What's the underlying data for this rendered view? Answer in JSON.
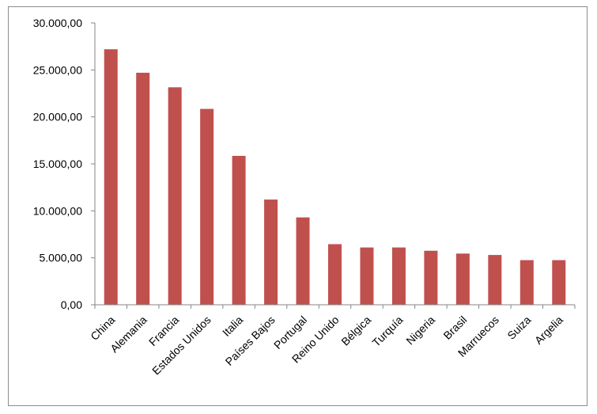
{
  "chart_data": {
    "type": "bar",
    "categories": [
      "China",
      "Alemania",
      "Francia",
      "Estados Unidos",
      "Italia",
      "Países Bajos",
      "Portugal",
      "Reino Unido",
      "Bélgica",
      "Turquía",
      "Nigeria",
      "Brasil",
      "Marruecos",
      "Suiza",
      "Argelia"
    ],
    "values": [
      27200,
      24700,
      23150,
      20850,
      15850,
      11200,
      9300,
      6450,
      6100,
      6100,
      5750,
      5450,
      5300,
      4750,
      4750
    ],
    "ylim": [
      0,
      30000
    ],
    "yticks": [
      0,
      5000,
      10000,
      15000,
      20000,
      25000,
      30000
    ],
    "ytick_labels": [
      "0,00",
      "5.000,00",
      "10.000,00",
      "15.000,00",
      "20.000,00",
      "25.000,00",
      "30.000,00"
    ],
    "title": "",
    "xlabel": "",
    "ylabel": "",
    "grid": false,
    "legend": "none",
    "bar_color": "#c0504d"
  }
}
